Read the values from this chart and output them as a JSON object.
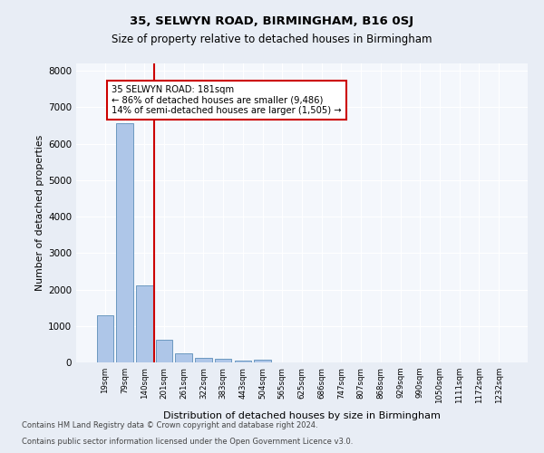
{
  "title1": "35, SELWYN ROAD, BIRMINGHAM, B16 0SJ",
  "title2": "Size of property relative to detached houses in Birmingham",
  "xlabel": "Distribution of detached houses by size in Birmingham",
  "ylabel": "Number of detached properties",
  "categories": [
    "19sqm",
    "79sqm",
    "140sqm",
    "201sqm",
    "261sqm",
    "322sqm",
    "383sqm",
    "443sqm",
    "504sqm",
    "565sqm",
    "625sqm",
    "686sqm",
    "747sqm",
    "807sqm",
    "868sqm",
    "929sqm",
    "990sqm",
    "1050sqm",
    "1111sqm",
    "1172sqm",
    "1232sqm"
  ],
  "values": [
    1300,
    6550,
    2100,
    620,
    240,
    130,
    90,
    55,
    80,
    0,
    0,
    0,
    0,
    0,
    0,
    0,
    0,
    0,
    0,
    0,
    0
  ],
  "bar_color": "#aec6e8",
  "bar_edge_color": "#5b8db8",
  "vline_color": "#cc0000",
  "annotation_line1": "35 SELWYN ROAD: 181sqm",
  "annotation_line2": "← 86% of detached houses are smaller (9,486)",
  "annotation_line3": "14% of semi-detached houses are larger (1,505) →",
  "annotation_box_color": "#ffffff",
  "annotation_box_edge": "#cc0000",
  "ylim": [
    0,
    8200
  ],
  "yticks": [
    0,
    1000,
    2000,
    3000,
    4000,
    5000,
    6000,
    7000,
    8000
  ],
  "bg_color": "#e8edf5",
  "plot_bg": "#f4f7fc",
  "grid_color": "#ffffff",
  "footer1": "Contains HM Land Registry data © Crown copyright and database right 2024.",
  "footer2": "Contains public sector information licensed under the Open Government Licence v3.0."
}
